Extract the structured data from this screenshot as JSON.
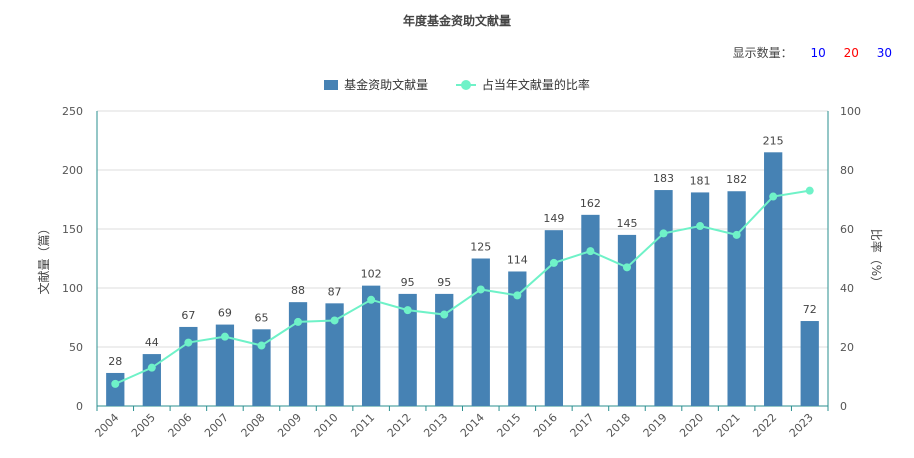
{
  "header": {
    "title": "年度基金资助文献量",
    "display_count_label": "显示数量：",
    "display_options": [
      {
        "label": "10",
        "color": "#0000ff"
      },
      {
        "label": "20",
        "color": "#ff0000"
      },
      {
        "label": "30",
        "color": "#0000ff"
      }
    ]
  },
  "chart_data": {
    "type": "bar",
    "title": "年度基金资助文献量",
    "categories": [
      "2004",
      "2005",
      "2006",
      "2007",
      "2008",
      "2009",
      "2010",
      "2011",
      "2012",
      "2013",
      "2014",
      "2015",
      "2016",
      "2017",
      "2018",
      "2019",
      "2020",
      "2021",
      "2022",
      "2023"
    ],
    "series": [
      {
        "name": "基金资助文献量",
        "type": "bar",
        "axis": "left",
        "color": "#4682b4",
        "values": [
          28,
          44,
          67,
          69,
          65,
          88,
          87,
          102,
          95,
          95,
          125,
          114,
          149,
          162,
          145,
          183,
          181,
          182,
          215,
          72
        ]
      },
      {
        "name": "占当年文献量的比率",
        "type": "line",
        "axis": "right",
        "color": "#6ff2c8",
        "values": [
          7.5,
          13,
          21.5,
          23.5,
          20.5,
          28.5,
          29,
          36,
          32.5,
          31,
          39.5,
          37.5,
          48.5,
          52.5,
          47,
          58.5,
          61,
          58,
          71,
          73
        ]
      }
    ],
    "ylabel": "文献量（篇）",
    "ylim": [
      0,
      250
    ],
    "yticks": [
      0,
      50,
      100,
      150,
      200,
      250
    ],
    "y2label": "比率（%）",
    "y2lim": [
      0,
      100
    ],
    "y2ticks": [
      0,
      20,
      40,
      60,
      80,
      100
    ],
    "grid": true,
    "legend": "top-center"
  }
}
